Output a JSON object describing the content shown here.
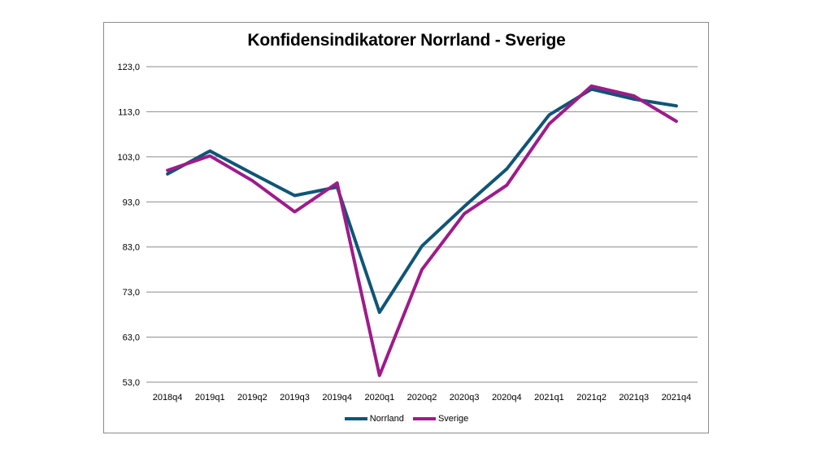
{
  "chart_data": {
    "type": "line",
    "title": "Konfidensindikatorer Norrland - Sverige",
    "xlabel": "",
    "ylabel": "",
    "categories": [
      "2018q4",
      "2019q1",
      "2019q2",
      "2019q3",
      "2019q4",
      "2020q1",
      "2020q2",
      "2020q3",
      "2020q4",
      "2021q1",
      "2021q2",
      "2021q3",
      "2021q4"
    ],
    "ylim": [
      53.0,
      123.0
    ],
    "yticks": [
      "53,0",
      "63,0",
      "73,0",
      "83,0",
      "93,0",
      "103,0",
      "113,0",
      "123,0"
    ],
    "ytick_values": [
      53,
      63,
      73,
      83,
      93,
      103,
      113,
      123
    ],
    "grid": "horizontal",
    "legend_position": "bottom",
    "series": [
      {
        "name": "Norrland",
        "color": "#0f5576",
        "values": [
          99.2,
          104.3,
          99.3,
          94.4,
          96.3,
          68.5,
          83.2,
          92.0,
          100.3,
          112.3,
          118.0,
          115.8,
          114.3
        ]
      },
      {
        "name": "Sverige",
        "color": "#9e1b8a",
        "values": [
          100.0,
          103.2,
          97.7,
          90.8,
          97.2,
          54.5,
          78.0,
          90.4,
          96.7,
          110.3,
          118.7,
          116.5,
          110.9
        ]
      }
    ]
  }
}
